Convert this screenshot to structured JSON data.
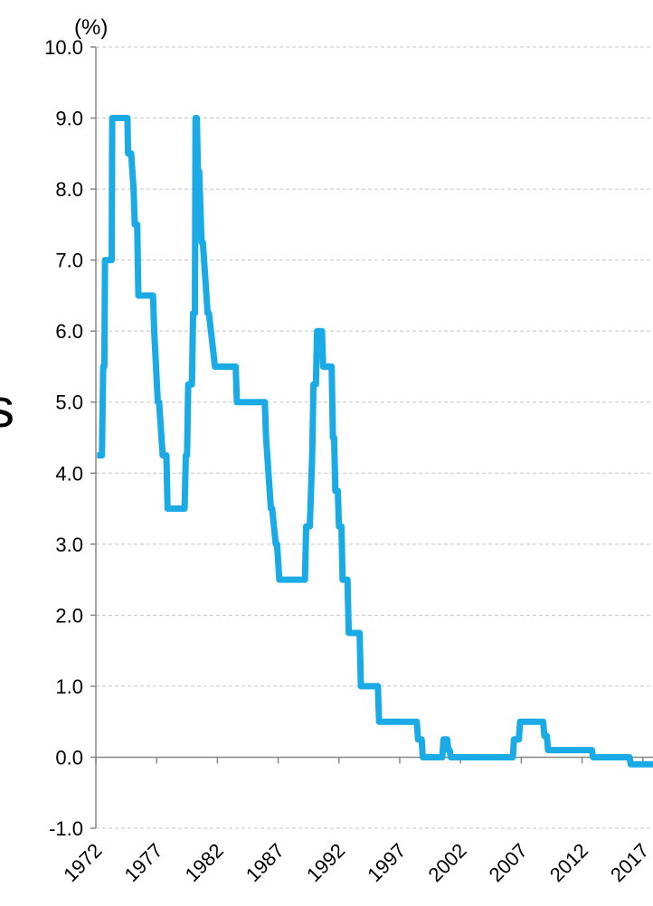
{
  "chart_data": {
    "type": "line",
    "title": "",
    "xlabel": "",
    "ylabel": "",
    "y_unit": "(%)",
    "side_text": "s",
    "xlim": [
      1972,
      2019
    ],
    "ylim": [
      -1.0,
      10.0
    ],
    "y_ticks": [
      "-1.0",
      "0.0",
      "1.0",
      "2.0",
      "3.0",
      "4.0",
      "5.0",
      "6.0",
      "7.0",
      "8.0",
      "9.0",
      "10.0"
    ],
    "x_ticks": [
      "1972",
      "1977",
      "1982",
      "1987",
      "1992",
      "1997",
      "2002",
      "2007",
      "2012",
      "2017"
    ],
    "grid": true,
    "line_color": "#1aaae6",
    "negative_tick_color": "#e00000",
    "series": [
      {
        "x": [
          1972.1,
          1972.5,
          1972.6,
          1972.7,
          1972.75,
          1972.9,
          1973.2,
          1973.3,
          1973.35,
          1973.5,
          1973.6,
          1974.0,
          1974.6,
          1974.65,
          1974.9,
          1975.1,
          1975.2,
          1975.4,
          1975.5,
          1976.0,
          1976.7,
          1976.8,
          1977.1,
          1977.2,
          1977.5,
          1977.6,
          1977.8,
          1977.9,
          1978.2,
          1978.3,
          1979.3,
          1979.4,
          1979.5,
          1979.6,
          1979.9,
          1980.0,
          1980.15,
          1980.2,
          1980.3,
          1980.4,
          1980.5,
          1980.7,
          1980.8,
          1981.2,
          1981.3,
          1981.8,
          1981.9,
          1983.5,
          1983.6,
          1985.9,
          1986.0,
          1986.4,
          1986.5,
          1986.8,
          1986.9,
          1987.1,
          1987.2,
          1989.2,
          1989.3,
          1989.6,
          1989.7,
          1989.8,
          1989.9,
          1990.1,
          1990.2,
          1990.6,
          1990.7,
          1991.4,
          1991.5,
          1991.6,
          1991.7,
          1991.9,
          1992.0,
          1992.2,
          1992.3,
          1992.7,
          1992.8,
          1993.2,
          1993.3,
          1993.7,
          1993.8,
          1995.2,
          1995.3,
          1995.6,
          1995.7,
          1998.4,
          1998.5,
          1998.8,
          1998.9,
          2000.5,
          2000.6,
          2000.9,
          2001.0,
          2001.1,
          2001.2,
          2006.3,
          2006.4,
          2006.8,
          2006.9,
          2008.8,
          2008.9,
          2009.1,
          2009.2,
          2012.8,
          2012.9,
          2015.9,
          2016.0,
          2019.0
        ],
        "y": [
          4.25,
          4.25,
          5.5,
          5.5,
          7.0,
          7.0,
          7.0,
          7.0,
          9.0,
          9.0,
          9.0,
          9.0,
          9.0,
          8.5,
          8.5,
          8.0,
          7.5,
          7.5,
          6.5,
          6.5,
          6.5,
          6.0,
          5.0,
          5.0,
          4.25,
          4.25,
          4.25,
          3.5,
          3.5,
          3.5,
          3.5,
          4.25,
          4.25,
          5.25,
          5.25,
          6.25,
          6.25,
          9.0,
          9.0,
          8.25,
          8.25,
          7.25,
          7.25,
          6.25,
          6.25,
          5.5,
          5.5,
          5.5,
          5.0,
          5.0,
          4.5,
          3.5,
          3.5,
          3.0,
          3.0,
          2.5,
          2.5,
          2.5,
          3.25,
          3.25,
          3.75,
          4.25,
          5.25,
          5.25,
          6.0,
          6.0,
          5.5,
          5.5,
          4.5,
          4.5,
          3.75,
          3.75,
          3.25,
          3.25,
          2.5,
          2.5,
          1.75,
          1.75,
          1.75,
          1.75,
          1.0,
          1.0,
          0.5,
          0.5,
          0.5,
          0.5,
          0.25,
          0.25,
          0.0,
          0.0,
          0.25,
          0.25,
          0.1,
          0.1,
          0.0,
          0.0,
          0.25,
          0.25,
          0.5,
          0.5,
          0.3,
          0.3,
          0.1,
          0.1,
          0.0,
          0.0,
          -0.1,
          -0.1
        ]
      }
    ]
  }
}
